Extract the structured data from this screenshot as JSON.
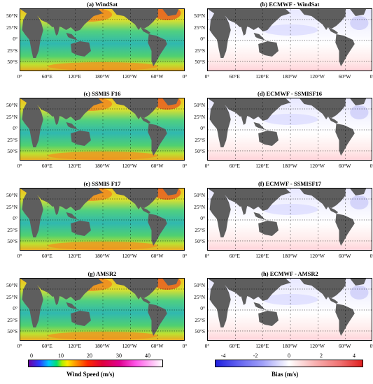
{
  "panels": [
    {
      "title": "(a) WindSat",
      "kind": "speed"
    },
    {
      "title": "(b) ECMWF - WindSat",
      "kind": "bias"
    },
    {
      "title": "(c) SSMIS F16",
      "kind": "speed"
    },
    {
      "title": "(d) ECMWF - SSMISF16",
      "kind": "bias"
    },
    {
      "title": "(e) SSMIS F17",
      "kind": "speed"
    },
    {
      "title": "(f) ECMWF - SSMISF17",
      "kind": "bias"
    },
    {
      "title": "(g) AMSR2",
      "kind": "speed"
    },
    {
      "title": "(h) ECMWF - AMSR2",
      "kind": "bias"
    }
  ],
  "latitude_labels": [
    "50°N",
    "25°N",
    "0°",
    "25°S",
    "50°S"
  ],
  "longitude_labels": [
    "0°",
    "60°E",
    "120°E",
    "180°W",
    "120°W",
    "60°W",
    "0°"
  ],
  "colorbars": {
    "speed": {
      "title": "Wind Speed (m/s)",
      "ticks": [
        "0",
        "10",
        "20",
        "30",
        "40"
      ],
      "range": [
        0,
        45
      ]
    },
    "bias": {
      "title": "Bias (m/s)",
      "ticks": [
        "-4",
        "-2",
        "0",
        "2",
        "4"
      ],
      "range": [
        -4,
        4
      ]
    }
  },
  "colors": {
    "land": "#5e5e5e",
    "ocean_speed": "#3fbf8f",
    "bias_neutral": "#ffffff"
  }
}
